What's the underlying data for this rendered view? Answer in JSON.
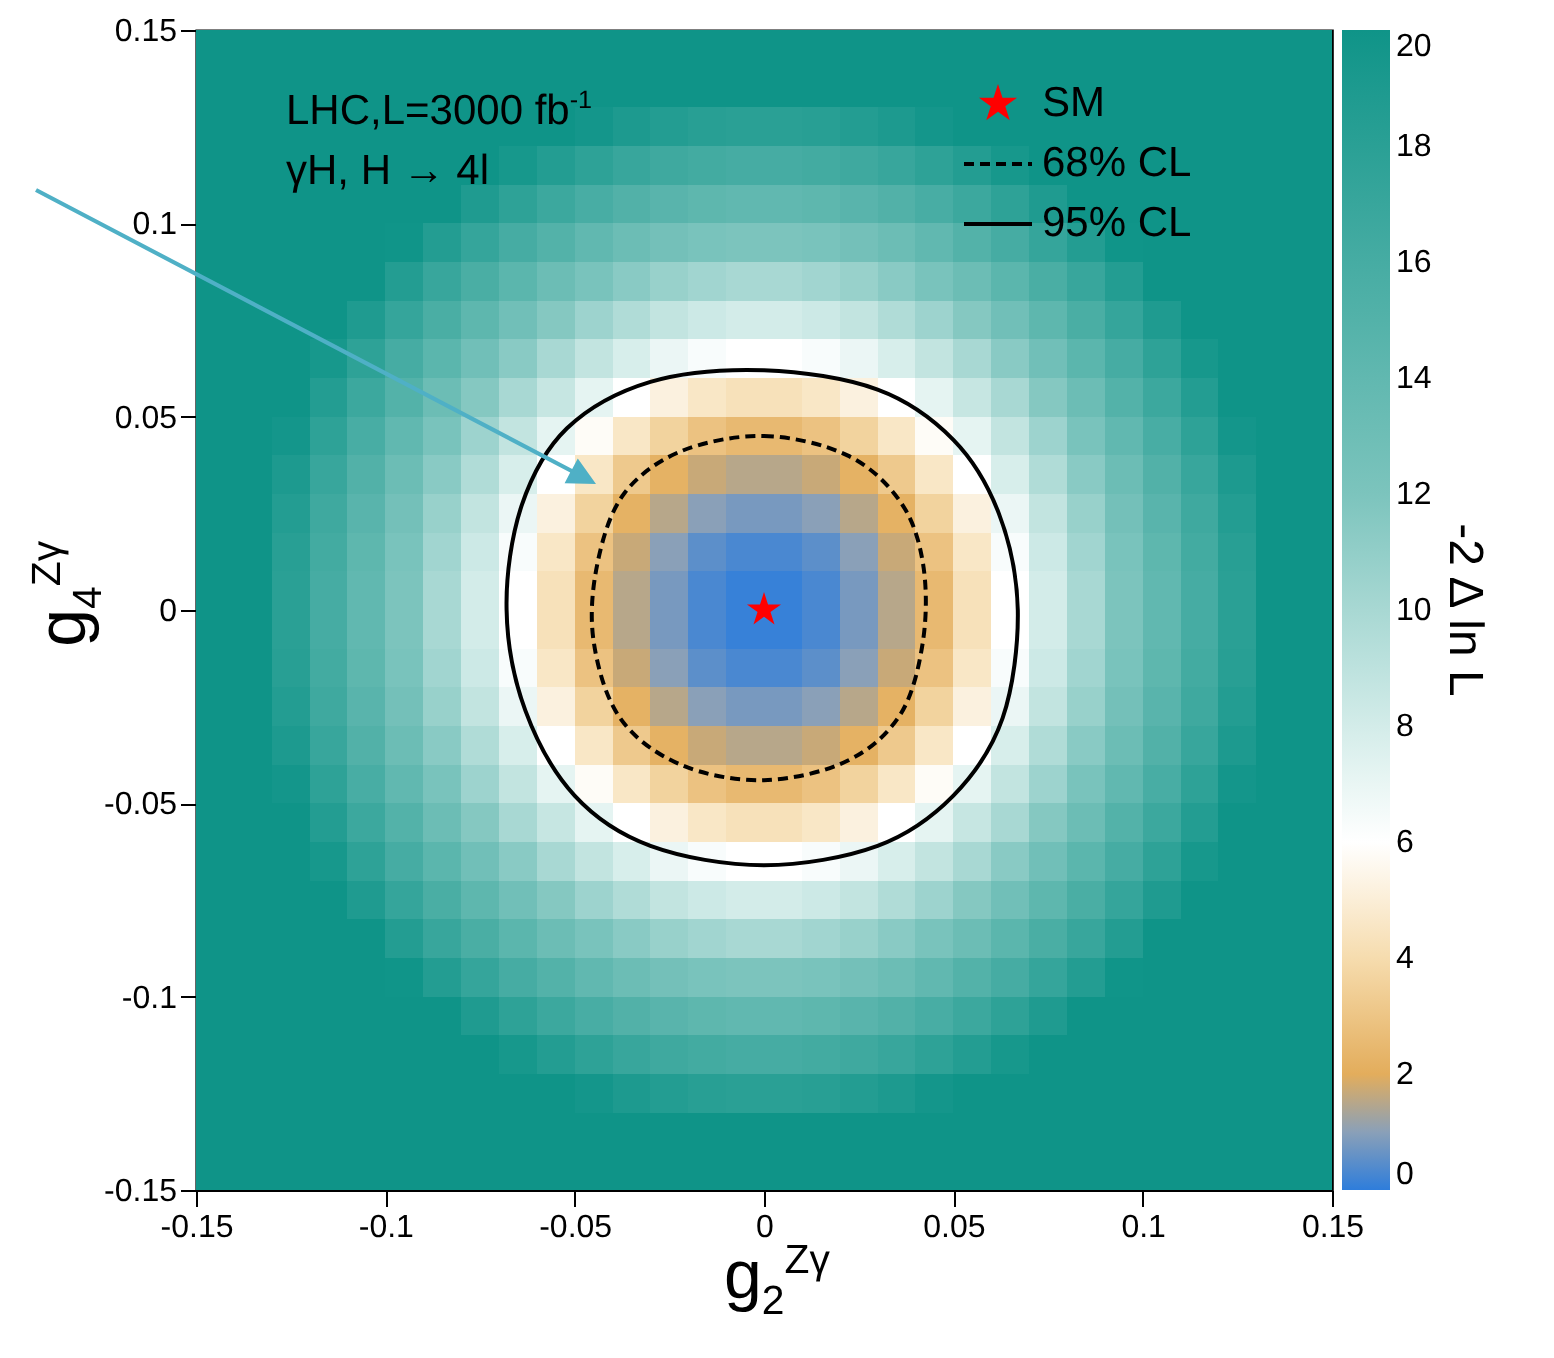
{
  "chart_data": {
    "type": "heatmap",
    "xlabel": "g$_{2}$$^{Zγ}$",
    "ylabel": "g$_{4}$$^{Zγ}$",
    "clabel": "-2 Δ ln L",
    "annotations": [
      "LHC,L=3000 fb$^{-1}$",
      "γH, H → 4l",
      "68% CL",
      "95% CL"
    ],
    "xlim": [
      -0.15,
      0.15
    ],
    "ylim": [
      -0.15,
      0.15
    ],
    "xticks": [
      -0.15,
      -0.1,
      -0.05,
      0,
      0.05,
      0.1,
      0.15
    ],
    "yticks": [
      -0.15,
      -0.1,
      -0.05,
      0,
      0.05,
      0.1,
      0.15
    ],
    "clim": [
      0,
      20
    ],
    "cticks": [
      0,
      2,
      4,
      6,
      8,
      10,
      12,
      14,
      16,
      18,
      20
    ],
    "legend": "top right",
    "x": [
      -0.145,
      -0.135,
      -0.125,
      -0.115,
      -0.105,
      -0.095,
      -0.085,
      -0.075,
      -0.065,
      -0.055,
      -0.045,
      -0.035,
      -0.025,
      -0.015,
      -0.005,
      0.005,
      0.015,
      0.025,
      0.035,
      0.045,
      0.055,
      0.065,
      0.075,
      0.085,
      0.095,
      0.105,
      0.115,
      0.125,
      0.135,
      0.145
    ],
    "y": [
      0.145,
      0.135,
      0.125,
      0.115,
      0.105,
      0.095,
      0.085,
      0.075,
      0.065,
      0.055,
      0.045,
      0.035,
      0.025,
      0.015,
      0.005,
      -0.005,
      -0.015,
      -0.025,
      -0.035,
      -0.045,
      -0.055,
      -0.065,
      -0.075,
      -0.085,
      -0.095,
      -0.105,
      -0.115,
      -0.125,
      -0.135,
      -0.145
    ],
    "cells": [
      [
        20,
        20,
        20,
        20,
        20,
        20,
        20,
        20,
        20,
        20,
        20,
        20,
        20,
        20,
        20,
        20,
        20,
        20,
        20,
        20,
        20,
        20,
        20,
        20,
        20,
        20,
        20,
        20,
        20,
        20
      ],
      [
        20,
        20,
        20,
        20,
        20,
        20,
        20,
        20,
        20,
        20,
        20,
        20,
        20,
        20,
        20,
        20,
        20,
        20,
        20,
        20,
        20,
        20,
        20,
        20,
        20,
        20,
        20,
        20,
        20,
        20
      ],
      [
        20,
        20,
        20,
        20,
        20,
        20,
        20,
        20,
        20,
        20,
        19.6,
        19.0,
        18.5,
        18.2,
        18.0,
        18.0,
        18.2,
        18.5,
        19.0,
        19.6,
        20,
        20,
        20,
        20,
        20,
        20,
        20,
        20,
        20,
        20
      ],
      [
        20,
        20,
        20,
        20,
        20,
        20,
        20,
        20,
        19.4,
        18.5,
        17.7,
        17.0,
        16.5,
        16.2,
        16.0,
        16.0,
        16.2,
        16.5,
        17.0,
        17.7,
        18.5,
        19.4,
        20,
        20,
        20,
        20,
        20,
        20,
        20,
        20
      ],
      [
        20,
        20,
        20,
        20,
        20,
        20,
        20,
        18.8,
        17.7,
        16.7,
        15.8,
        15.1,
        14.6,
        14.2,
        14.0,
        14.0,
        14.2,
        14.6,
        15.1,
        15.8,
        16.7,
        17.7,
        18.8,
        20,
        20,
        20,
        20,
        20,
        20,
        20
      ],
      [
        20,
        20,
        20,
        20,
        20,
        19.9,
        18.5,
        17.2,
        16.0,
        15.0,
        14.0,
        13.2,
        12.6,
        12.2,
        12.0,
        12.0,
        12.2,
        12.6,
        13.2,
        14.0,
        15.0,
        16.0,
        17.2,
        18.5,
        19.9,
        20,
        20,
        20,
        20,
        20
      ],
      [
        20,
        20,
        20,
        20,
        20,
        18.5,
        17.0,
        15.7,
        14.4,
        13.2,
        12.2,
        11.4,
        10.7,
        10.3,
        10.0,
        10.0,
        10.3,
        10.7,
        11.4,
        12.2,
        13.2,
        14.4,
        15.7,
        17.0,
        18.5,
        20,
        20,
        20,
        20,
        20
      ],
      [
        20,
        20,
        20,
        20,
        18.8,
        17.2,
        15.7,
        14.2,
        12.8,
        11.6,
        10.5,
        9.6,
        8.8,
        8.3,
        8.0,
        8.0,
        8.3,
        8.8,
        9.6,
        10.5,
        11.6,
        12.8,
        14.2,
        15.7,
        17.2,
        18.8,
        20,
        20,
        20,
        20
      ],
      [
        20,
        20,
        20,
        19.4,
        17.7,
        16.0,
        14.4,
        12.8,
        11.4,
        10.0,
        8.8,
        7.8,
        6.9,
        6.3,
        6.0,
        6.0,
        6.3,
        6.9,
        7.8,
        8.8,
        10.0,
        11.4,
        12.8,
        14.4,
        16.0,
        17.7,
        19.4,
        20,
        20,
        20
      ],
      [
        20,
        20,
        20,
        18.5,
        16.7,
        15.0,
        13.2,
        11.6,
        10.0,
        8.6,
        7.2,
        6.0,
        5.2,
        4.6,
        4.3,
        4.3,
        4.6,
        5.2,
        6.0,
        7.2,
        8.6,
        10.0,
        11.6,
        13.2,
        15.0,
        16.7,
        18.5,
        20,
        20,
        20
      ],
      [
        20,
        20,
        19.6,
        17.7,
        15.8,
        14.0,
        12.2,
        10.5,
        8.8,
        7.2,
        5.8,
        4.6,
        3.6,
        2.9,
        2.5,
        2.5,
        2.9,
        3.6,
        4.6,
        5.8,
        7.2,
        8.8,
        10.5,
        12.2,
        14.0,
        15.8,
        17.7,
        19.6,
        20,
        20
      ],
      [
        20,
        20,
        19.0,
        17.0,
        15.1,
        13.2,
        11.4,
        9.6,
        7.8,
        6.0,
        4.6,
        3.2,
        2.2,
        1.7,
        1.5,
        1.5,
        1.7,
        2.2,
        3.2,
        4.6,
        6.0,
        7.8,
        9.6,
        11.4,
        13.2,
        15.1,
        17.0,
        19.0,
        20,
        20
      ],
      [
        20,
        20,
        18.5,
        16.5,
        14.6,
        12.6,
        10.7,
        8.8,
        6.9,
        5.2,
        3.6,
        2.2,
        1.5,
        1.0,
        0.8,
        0.8,
        1.0,
        1.5,
        2.2,
        3.6,
        5.2,
        6.9,
        8.8,
        10.7,
        12.6,
        14.6,
        16.5,
        18.5,
        20,
        20
      ],
      [
        20,
        20,
        18.2,
        16.2,
        14.2,
        12.2,
        10.3,
        8.3,
        6.3,
        4.6,
        2.9,
        1.7,
        1.0,
        0.5,
        0.3,
        0.3,
        0.5,
        1.0,
        1.7,
        2.9,
        4.6,
        6.3,
        8.3,
        10.3,
        12.2,
        14.2,
        16.2,
        18.2,
        20,
        20
      ],
      [
        20,
        20,
        18.0,
        16.0,
        14.0,
        12.0,
        10.0,
        8.0,
        6.0,
        4.3,
        2.5,
        1.5,
        0.8,
        0.3,
        0.1,
        0.1,
        0.3,
        0.8,
        1.5,
        2.5,
        4.3,
        6.0,
        8.0,
        10.0,
        12.0,
        14.0,
        16.0,
        18.0,
        20,
        20
      ],
      [
        20,
        20,
        18.0,
        16.0,
        14.0,
        12.0,
        10.0,
        8.0,
        6.0,
        4.3,
        2.5,
        1.5,
        0.8,
        0.3,
        0.1,
        0.1,
        0.3,
        0.8,
        1.5,
        2.5,
        4.3,
        6.0,
        8.0,
        10.0,
        12.0,
        14.0,
        16.0,
        18.0,
        20,
        20
      ],
      [
        20,
        20,
        18.2,
        16.2,
        14.2,
        12.2,
        10.3,
        8.3,
        6.3,
        4.6,
        2.9,
        1.7,
        1.0,
        0.5,
        0.3,
        0.3,
        0.5,
        1.0,
        1.7,
        2.9,
        4.6,
        6.3,
        8.3,
        10.3,
        12.2,
        14.2,
        16.2,
        18.2,
        20,
        20
      ],
      [
        20,
        20,
        18.5,
        16.5,
        14.6,
        12.6,
        10.7,
        8.8,
        6.9,
        5.2,
        3.6,
        2.2,
        1.5,
        1.0,
        0.8,
        0.8,
        1.0,
        1.5,
        2.2,
        3.6,
        5.2,
        6.9,
        8.8,
        10.7,
        12.6,
        14.6,
        16.5,
        18.5,
        20,
        20
      ],
      [
        20,
        20,
        19.0,
        17.0,
        15.1,
        13.2,
        11.4,
        9.6,
        7.8,
        6.0,
        4.6,
        3.2,
        2.2,
        1.7,
        1.5,
        1.5,
        1.7,
        2.2,
        3.2,
        4.6,
        6.0,
        7.8,
        9.6,
        11.4,
        13.2,
        15.1,
        17.0,
        19.0,
        20,
        20
      ],
      [
        20,
        20,
        19.6,
        17.7,
        15.8,
        14.0,
        12.2,
        10.5,
        8.8,
        7.2,
        5.8,
        4.6,
        3.6,
        2.9,
        2.5,
        2.5,
        2.9,
        3.6,
        4.6,
        5.8,
        7.2,
        8.8,
        10.5,
        12.2,
        14.0,
        15.8,
        17.7,
        19.6,
        20,
        20
      ],
      [
        20,
        20,
        20,
        18.5,
        16.7,
        15.0,
        13.2,
        11.6,
        10.0,
        8.6,
        7.2,
        6.0,
        5.2,
        4.6,
        4.3,
        4.3,
        4.6,
        5.2,
        6.0,
        7.2,
        8.6,
        10.0,
        11.6,
        13.2,
        15.0,
        16.7,
        18.5,
        20,
        20,
        20
      ],
      [
        20,
        20,
        20,
        19.4,
        17.7,
        16.0,
        14.4,
        12.8,
        11.4,
        10.0,
        8.8,
        7.8,
        6.9,
        6.3,
        6.0,
        6.0,
        6.3,
        6.9,
        7.8,
        8.8,
        10.0,
        11.4,
        12.8,
        14.4,
        16.0,
        17.7,
        19.4,
        20,
        20,
        20
      ],
      [
        20,
        20,
        20,
        20,
        18.8,
        17.2,
        15.7,
        14.2,
        12.8,
        11.6,
        10.5,
        9.6,
        8.8,
        8.3,
        8.0,
        8.0,
        8.3,
        8.8,
        9.6,
        10.5,
        11.6,
        12.8,
        14.2,
        15.7,
        17.2,
        18.8,
        20,
        20,
        20,
        20
      ],
      [
        20,
        20,
        20,
        20,
        20,
        18.5,
        17.0,
        15.7,
        14.4,
        13.2,
        12.2,
        11.4,
        10.7,
        10.3,
        10.0,
        10.0,
        10.3,
        10.7,
        11.4,
        12.2,
        13.2,
        14.4,
        15.7,
        17.0,
        18.5,
        20,
        20,
        20,
        20,
        20
      ],
      [
        20,
        20,
        20,
        20,
        20,
        19.9,
        18.5,
        17.2,
        16.0,
        15.0,
        14.0,
        13.2,
        12.6,
        12.2,
        12.0,
        12.0,
        12.2,
        12.6,
        13.2,
        14.0,
        15.0,
        16.0,
        17.2,
        18.5,
        19.9,
        20,
        20,
        20,
        20,
        20
      ],
      [
        20,
        20,
        20,
        20,
        20,
        20,
        20,
        18.8,
        17.7,
        16.7,
        15.8,
        15.1,
        14.6,
        14.2,
        14.0,
        14.0,
        14.2,
        14.6,
        15.1,
        15.8,
        16.7,
        17.7,
        18.8,
        20,
        20,
        20,
        20,
        20,
        20,
        20
      ],
      [
        20,
        20,
        20,
        20,
        20,
        20,
        20,
        20,
        19.4,
        18.5,
        17.7,
        17.0,
        16.5,
        16.2,
        16.0,
        16.0,
        16.2,
        16.5,
        17.0,
        17.7,
        18.5,
        19.4,
        20,
        20,
        20,
        20,
        20,
        20,
        20,
        20
      ],
      [
        20,
        20,
        20,
        20,
        20,
        20,
        20,
        20,
        20,
        20,
        19.6,
        19.0,
        18.5,
        18.2,
        18.0,
        18.0,
        18.2,
        18.5,
        19.0,
        19.6,
        20,
        20,
        20,
        20,
        20,
        20,
        20,
        20,
        20,
        20
      ],
      [
        20,
        20,
        20,
        20,
        20,
        20,
        20,
        20,
        20,
        20,
        20,
        20,
        20,
        20,
        20,
        20,
        20,
        20,
        20,
        20,
        20,
        20,
        20,
        20,
        20,
        20,
        20,
        20,
        20,
        20
      ],
      [
        20,
        20,
        20,
        20,
        20,
        20,
        20,
        20,
        20,
        20,
        20,
        20,
        20,
        20,
        20,
        20,
        20,
        20,
        20,
        20,
        20,
        20,
        20,
        20,
        20,
        20,
        20,
        20,
        20,
        20
      ]
    ],
    "series": [
      {
        "name": "SM",
        "type": "scatter",
        "marker": "star",
        "color": "#ff0000",
        "x": [
          0
        ],
        "values": [
          0
        ]
      }
    ]
  }
}
